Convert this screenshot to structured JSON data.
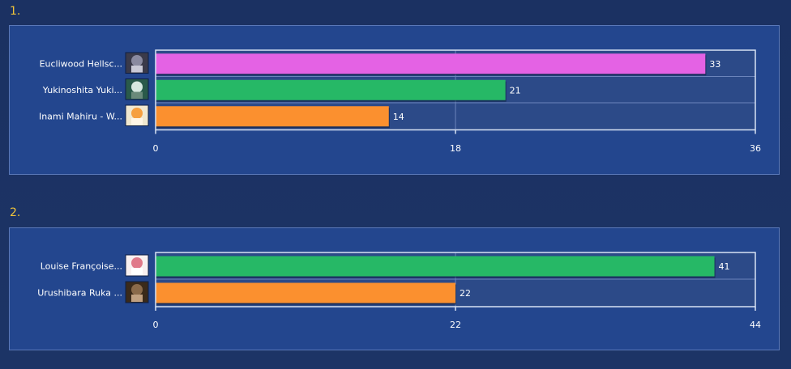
{
  "chart_data": [
    {
      "type": "bar",
      "orientation": "horizontal",
      "number_label": "1.",
      "categories": [
        "Eucliwood Hellsc...",
        "Yukinoshita Yuki...",
        "Inami Mahiru - W..."
      ],
      "values": [
        33,
        21,
        14
      ],
      "bar_colors": [
        "#e462e4",
        "#26b866",
        "#fb902f"
      ],
      "xlim": [
        0,
        36
      ],
      "ticks": [
        0,
        18,
        36
      ],
      "grid": true
    },
    {
      "type": "bar",
      "orientation": "horizontal",
      "number_label": "2.",
      "categories": [
        "Louise Françoise...",
        "Urushibara Ruka ..."
      ],
      "values": [
        41,
        22
      ],
      "bar_colors": [
        "#26b866",
        "#fb902f"
      ],
      "xlim": [
        0,
        44
      ],
      "ticks": [
        0,
        22,
        44
      ],
      "grid": true
    }
  ]
}
